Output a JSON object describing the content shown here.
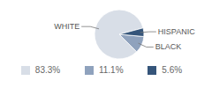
{
  "chart_data": {
    "type": "pie",
    "categories": [
      "WHITE",
      "BLACK",
      "HISPANIC"
    ],
    "values": [
      83.3,
      11.1,
      5.6
    ],
    "value_labels": [
      "83.3%",
      "11.1%",
      "5.6%"
    ],
    "colors": [
      "#d8dee7",
      "#8fa2bd",
      "#35557a"
    ]
  }
}
